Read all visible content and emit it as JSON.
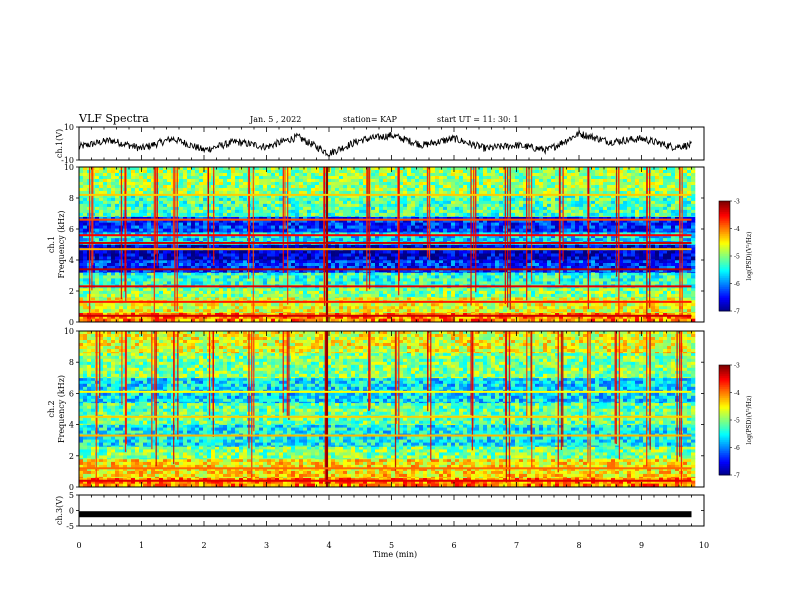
{
  "header": {
    "title": "VLF Spectra",
    "date": "Jan. 5 , 2022",
    "station": "station= KAP",
    "start": "start UT = 11: 30: 1"
  },
  "chart_data": [
    {
      "type": "line",
      "name": "ch1-waveform",
      "ylabel": "ch.1(V)",
      "ylim": [
        -10,
        10
      ],
      "xlim": [
        0,
        10
      ],
      "yticks": [
        "10",
        "-10"
      ],
      "x": [
        0.0,
        0.5,
        1.0,
        1.5,
        2.0,
        2.5,
        3.0,
        3.5,
        4.0,
        4.5,
        5.0,
        5.5,
        6.0,
        6.5,
        7.0,
        7.5,
        8.0,
        8.5,
        9.0,
        9.5,
        9.8
      ],
      "y": [
        -2,
        2,
        -3,
        3,
        -4,
        1,
        -2,
        4,
        -6,
        2,
        5,
        -1,
        3,
        -3,
        -1,
        -4,
        6,
        1,
        3,
        -2,
        -1
      ]
    },
    {
      "type": "heatmap",
      "name": "ch1-spectrogram",
      "ylabel": "ch.1",
      "ylabel2": "Frequency (kHz)",
      "ylim": [
        0,
        10
      ],
      "xlim": [
        0,
        10
      ],
      "data_xmax": 9.8,
      "yticks": [
        "0",
        "2",
        "4",
        "6",
        "8",
        "10"
      ],
      "colorbar": {
        "label": "log(PSD)(V²/Hz)",
        "range": [
          -7,
          -3
        ],
        "ticks": [
          "-3",
          "-4",
          "-5",
          "-6",
          "-7"
        ]
      },
      "bands": [
        {
          "freq_khz": [
            0.0,
            0.6
          ],
          "log_psd": -4.0
        },
        {
          "freq_khz": [
            0.6,
            1.6
          ],
          "log_psd": -4.6
        },
        {
          "freq_khz": [
            1.6,
            2.2
          ],
          "log_psd": -5.0
        },
        {
          "freq_khz": [
            2.2,
            3.2
          ],
          "log_psd": -5.3
        },
        {
          "freq_khz": [
            3.2,
            4.0
          ],
          "log_psd": -6.3
        },
        {
          "freq_khz": [
            4.0,
            5.0
          ],
          "log_psd": -6.7
        },
        {
          "freq_khz": [
            5.0,
            5.8
          ],
          "log_psd": -5.6
        },
        {
          "freq_khz": [
            5.8,
            6.8
          ],
          "log_psd": -6.3
        },
        {
          "freq_khz": [
            6.8,
            8.2
          ],
          "log_psd": -5.2
        },
        {
          "freq_khz": [
            8.2,
            10.0
          ],
          "log_psd": -4.9
        }
      ],
      "lines": [
        {
          "freq_khz": 0.4,
          "log_psd": -3.3
        },
        {
          "freq_khz": 1.3,
          "log_psd": -3.6
        },
        {
          "freq_khz": 2.3,
          "log_psd": -3.4
        },
        {
          "freq_khz": 3.4,
          "log_psd": -3.2
        },
        {
          "freq_khz": 4.7,
          "log_psd": -4.2
        },
        {
          "freq_khz": 5.1,
          "log_psd": -3.3
        },
        {
          "freq_khz": 5.6,
          "log_psd": -3.5
        },
        {
          "freq_khz": 6.6,
          "log_psd": -3.8
        },
        {
          "freq_khz": 8.2,
          "log_psd": -4.3
        }
      ],
      "bursts_min": [
        0.2,
        0.7,
        1.2,
        1.55,
        2.1,
        2.75,
        3.3,
        3.95,
        4.6,
        5.1,
        5.6,
        6.3,
        6.85,
        7.2,
        7.7,
        8.15,
        8.6,
        9.1,
        9.6
      ]
    },
    {
      "type": "heatmap",
      "name": "ch2-spectrogram",
      "ylabel": "ch.2",
      "ylabel2": "Frequency (kHz)",
      "ylim": [
        0,
        10
      ],
      "xlim": [
        0,
        10
      ],
      "data_xmax": 9.8,
      "yticks": [
        "0",
        "2",
        "4",
        "6",
        "8",
        "10"
      ],
      "colorbar": {
        "label": "log(PSD)(V²/Hz)",
        "range": [
          -7,
          -3
        ],
        "ticks": [
          "-3",
          "-4",
          "-5",
          "-6",
          "-7"
        ]
      },
      "bands": [
        {
          "freq_khz": [
            0.0,
            0.6
          ],
          "log_psd": -4.0
        },
        {
          "freq_khz": [
            0.6,
            1.8
          ],
          "log_psd": -4.4
        },
        {
          "freq_khz": [
            1.8,
            2.6
          ],
          "log_psd": -5.0
        },
        {
          "freq_khz": [
            2.6,
            4.0
          ],
          "log_psd": -5.5
        },
        {
          "freq_khz": [
            4.0,
            5.4
          ],
          "log_psd": -5.1
        },
        {
          "freq_khz": [
            5.4,
            7.0
          ],
          "log_psd": -5.6
        },
        {
          "freq_khz": [
            7.0,
            8.6
          ],
          "log_psd": -5.0
        },
        {
          "freq_khz": [
            8.6,
            10.0
          ],
          "log_psd": -4.6
        }
      ],
      "lines": [
        {
          "freq_khz": 0.4,
          "log_psd": -3.4
        },
        {
          "freq_khz": 1.2,
          "log_psd": -3.9
        },
        {
          "freq_khz": 3.3,
          "log_psd": -4.2
        },
        {
          "freq_khz": 4.5,
          "log_psd": -4.3
        },
        {
          "freq_khz": 6.1,
          "log_psd": -4.5
        }
      ],
      "bursts_min": [
        0.3,
        0.7,
        1.2,
        1.55,
        2.1,
        2.75,
        3.3,
        3.95,
        4.6,
        5.1,
        5.6,
        6.3,
        6.85,
        7.2,
        7.7,
        8.15,
        8.6,
        9.1,
        9.6
      ]
    },
    {
      "type": "line",
      "name": "ch3-waveform",
      "ylabel": "ch.3(V)",
      "ylim": [
        -5,
        5
      ],
      "xlim": [
        0,
        10
      ],
      "yticks": [
        "5",
        "0",
        "-5"
      ],
      "x": [
        0.0,
        9.8
      ],
      "y": [
        -1.2,
        -1.2
      ]
    }
  ],
  "xaxis": {
    "label": "Time (min)",
    "ticks": [
      "0",
      "1",
      "2",
      "3",
      "4",
      "5",
      "6",
      "7",
      "8",
      "9",
      "10"
    ]
  }
}
